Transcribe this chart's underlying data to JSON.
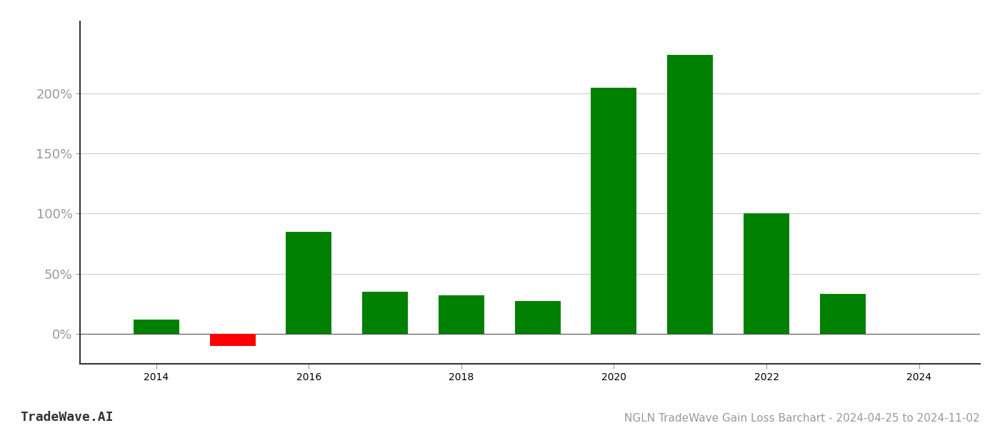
{
  "years": [
    2014,
    2015,
    2016,
    2017,
    2018,
    2019,
    2020,
    2021,
    2022,
    2023
  ],
  "values": [
    12,
    -10,
    85,
    35,
    32,
    27,
    205,
    232,
    100,
    33
  ],
  "colors": [
    "#008000",
    "#ff0000",
    "#008000",
    "#008000",
    "#008000",
    "#008000",
    "#008000",
    "#008000",
    "#008000",
    "#008000"
  ],
  "title": "NGLN TradeWave Gain Loss Barchart - 2024-04-25 to 2024-11-02",
  "watermark": "TradeWave.AI",
  "background_color": "#ffffff",
  "bar_width": 0.6,
  "ylim_min": -25,
  "ylim_max": 260,
  "xlim_min": 2013.0,
  "xlim_max": 2024.8,
  "grid_color": "#cccccc",
  "axis_color": "#999999",
  "tick_label_color": "#999999",
  "title_color": "#999999",
  "watermark_color": "#333333",
  "zero_line_color": "#555555",
  "bottom_spine_color": "#333333",
  "yticks": [
    0,
    50,
    100,
    150,
    200
  ],
  "ytick_labels": [
    "0%",
    "50%",
    "100%",
    "150%",
    "200%"
  ],
  "xticks": [
    2014,
    2016,
    2018,
    2020,
    2022,
    2024
  ],
  "title_fontsize": 11,
  "watermark_fontsize": 13,
  "tick_fontsize": 13
}
